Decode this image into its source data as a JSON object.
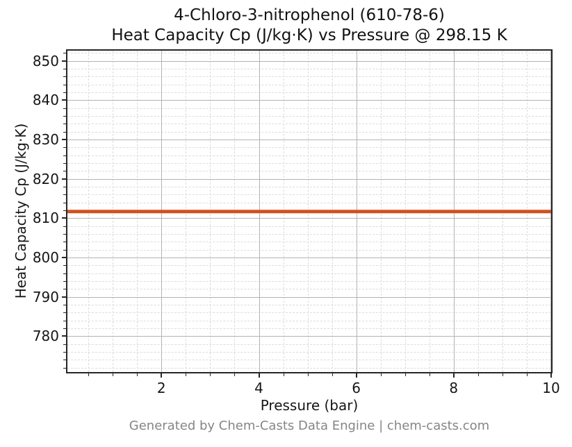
{
  "page": {
    "title_line1": "4-Chloro-3-nitrophenol (610-78-6)",
    "title_line2": "Heat Capacity Cp (J/kg·K) vs Pressure @ 298.15 K",
    "footer": "Generated by Chem-Casts Data Engine | chem-casts.com"
  },
  "chart_data": {
    "type": "line",
    "title": "4-Chloro-3-nitrophenol (610-78-6)",
    "subtitle": "Heat Capacity Cp (J/kg·K) vs Pressure @ 298.15 K",
    "xlabel": "Pressure (bar)",
    "ylabel": "Heat Capacity Cp (J/kg·K)",
    "xlim": [
      0.07,
      10
    ],
    "ylim": [
      770.9,
      852.6
    ],
    "x_major_ticks": [
      2,
      4,
      6,
      8,
      10
    ],
    "x_minor_tick_step": 0.5,
    "y_major_ticks": [
      780,
      790,
      800,
      810,
      820,
      830,
      840,
      850
    ],
    "y_minor_tick_step": 2,
    "grid": {
      "visible": true,
      "major_style": "solid",
      "minor_style": "dashed"
    },
    "legend": "none",
    "series": [
      {
        "name": "Heat Capacity Cp",
        "color": "#d0521f",
        "line_width": 5,
        "x": [
          0.07,
          1,
          2,
          3,
          4,
          5,
          6,
          7,
          8,
          9,
          10
        ],
        "y": [
          811.7,
          811.7,
          811.7,
          811.7,
          811.7,
          811.7,
          811.7,
          811.7,
          811.7,
          811.7,
          811.7
        ]
      }
    ]
  },
  "colors": {
    "background": "#ffffff",
    "spine": "#262626",
    "grid_major": "#b3b3b3",
    "grid_minor": "#dcdcdc",
    "text": "#161616",
    "footer_text": "#858585",
    "series_line": "#d0521f"
  }
}
